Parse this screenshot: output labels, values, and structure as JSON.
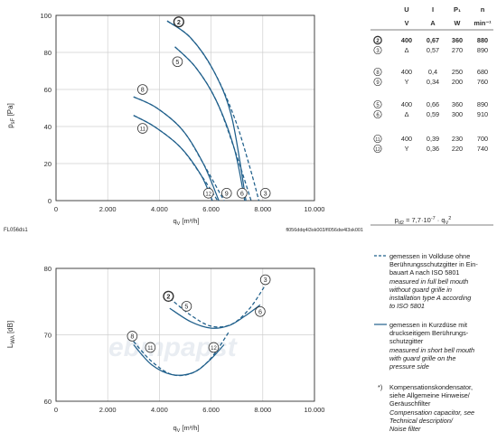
{
  "colors": {
    "curve": "#1f5f8b",
    "grid": "#cfcfcf",
    "axis": "#333333",
    "watermark": "#e9edf2"
  },
  "watermark_text": "ebmpapst",
  "chart_data": [
    {
      "type": "line",
      "id": "pressure",
      "ylabel": "p_sF [Pa]",
      "xlabel": "q_V [m³/h]",
      "xlim": [
        0,
        10000
      ],
      "ylim": [
        0,
        100
      ],
      "x_ticks": [
        "0",
        "2.000",
        "4.000",
        "6.000",
        "8.000",
        "10.000"
      ],
      "y_ticks": [
        "0",
        "20",
        "40",
        "60",
        "80",
        "100"
      ],
      "grid": true,
      "footer_left": "FL056ds1",
      "footer_right": "fl056ddq4l3sk003/fl056dw4l3sk001",
      "series": [
        {
          "name": "2",
          "dash": true,
          "x": [
            4300,
            5200,
            6100,
            6900,
            7500,
            7850
          ],
          "y": [
            97,
            88,
            70,
            45,
            18,
            0
          ]
        },
        {
          "name": "5",
          "dash": false,
          "x": [
            4600,
            5400,
            6200,
            6900,
            7300
          ],
          "y": [
            83,
            72,
            54,
            28,
            0
          ]
        },
        {
          "name": "3",
          "dash": true,
          "x": [
            4600,
            5400,
            6200,
            6900,
            7550
          ],
          "y": [
            83,
            72,
            54,
            28,
            0
          ]
        },
        {
          "name": "6",
          "dash": false,
          "x": [
            4300,
            5200,
            6100,
            6800,
            7350
          ],
          "y": [
            97,
            88,
            70,
            45,
            0
          ]
        },
        {
          "name": "8",
          "dash": true,
          "x": [
            3000,
            3900,
            4900,
            5700,
            6500
          ],
          "y": [
            56,
            50,
            38,
            20,
            0
          ]
        },
        {
          "name": "9",
          "dash": false,
          "x": [
            3000,
            3900,
            4900,
            5700,
            6300
          ],
          "y": [
            56,
            50,
            38,
            20,
            0
          ]
        },
        {
          "name": "11",
          "dash": false,
          "x": [
            3000,
            3800,
            4800,
            5600,
            6050
          ],
          "y": [
            46,
            40,
            29,
            14,
            0
          ]
        },
        {
          "name": "12",
          "dash": true,
          "x": [
            3000,
            3800,
            4800,
            5600,
            6250
          ],
          "y": [
            46,
            40,
            29,
            14,
            0
          ]
        }
      ],
      "markers": [
        {
          "label": "2",
          "x": 4750,
          "y": 96.5,
          "bold": true
        },
        {
          "label": "5",
          "x": 4700,
          "y": 75
        },
        {
          "label": "8",
          "x": 3350,
          "y": 60
        },
        {
          "label": "11",
          "x": 3350,
          "y": 39
        },
        {
          "label": "12",
          "x": 5900,
          "y": 4
        },
        {
          "label": "9",
          "x": 6600,
          "y": 4
        },
        {
          "label": "6",
          "x": 7200,
          "y": 4
        },
        {
          "label": "3",
          "x": 8100,
          "y": 4
        }
      ]
    },
    {
      "type": "line",
      "id": "sound",
      "ylabel": "L_WA [dB]",
      "xlabel": "q_V [m³/h]",
      "xlim": [
        0,
        10000
      ],
      "ylim": [
        60,
        80
      ],
      "x_ticks": [
        "0",
        "2.000",
        "4.000",
        "6.000",
        "8.000",
        "10.000"
      ],
      "y_ticks": [
        "60",
        "70",
        "80"
      ],
      "grid": true,
      "series": [
        {
          "name": "2",
          "dash": true,
          "x": [
            4400,
            5200,
            6000,
            6800,
            7500,
            8100
          ],
          "y": [
            75.5,
            73.0,
            71.3,
            71.6,
            74.0,
            77.5
          ]
        },
        {
          "name": "5",
          "dash": false,
          "x": [
            4400,
            5200,
            6000,
            6700,
            7300,
            7900
          ],
          "y": [
            74.0,
            72.0,
            71.0,
            71.4,
            72.8,
            74.5
          ]
        },
        {
          "name": "8",
          "dash": true,
          "x": [
            3000,
            3700,
            4500,
            5300,
            6000,
            6700
          ],
          "y": [
            69.0,
            66.0,
            64.0,
            64.3,
            66.5,
            70.5
          ]
        },
        {
          "name": "11",
          "dash": false,
          "x": [
            3000,
            3700,
            4500,
            5300,
            5900,
            6500
          ],
          "y": [
            68.5,
            65.5,
            64.0,
            64.3,
            66.0,
            68.5
          ]
        }
      ],
      "markers": [
        {
          "label": "2",
          "x": 4350,
          "y": 75.8,
          "bold": true
        },
        {
          "label": "5",
          "x": 5050,
          "y": 74.3
        },
        {
          "label": "3",
          "x": 8100,
          "y": 78.3
        },
        {
          "label": "6",
          "x": 7900,
          "y": 73.5
        },
        {
          "label": "8",
          "x": 2950,
          "y": 69.8
        },
        {
          "label": "11",
          "x": 3650,
          "y": 68.1
        },
        {
          "label": "12",
          "x": 6100,
          "y": 68.1
        }
      ]
    },
    {
      "type": "table",
      "id": "specs",
      "headers": [
        "U",
        "I",
        "P₁",
        "n"
      ],
      "units": [
        "V",
        "A",
        "W",
        "min⁻¹"
      ],
      "groups": [
        {
          "rows": [
            {
              "marker": "2",
              "conn": "",
              "U": "400",
              "I": "0,67",
              "P": "360",
              "n": "880",
              "bold": true
            },
            {
              "marker": "3",
              "conn": "Δ",
              "U": "",
              "I": "0,57",
              "P": "270",
              "n": "890",
              "bold": false
            }
          ]
        },
        {
          "rows": [
            {
              "marker": "8",
              "conn": "",
              "U": "400",
              "I": "0,4",
              "P": "250",
              "n": "680",
              "bold": false
            },
            {
              "marker": "9",
              "conn": "Y",
              "U": "",
              "I": "0,34",
              "P": "200",
              "n": "760",
              "bold": false
            }
          ]
        },
        {
          "rows": [
            {
              "marker": "5",
              "conn": "",
              "U": "400",
              "I": "0,66",
              "P": "360",
              "n": "890",
              "bold": false
            },
            {
              "marker": "6",
              "conn": "Δ",
              "U": "",
              "I": "0,59",
              "P": "300",
              "n": "910",
              "bold": false
            }
          ]
        },
        {
          "rows": [
            {
              "marker": "11",
              "conn": "",
              "U": "400",
              "I": "0,39",
              "P": "230",
              "n": "700",
              "bold": false
            },
            {
              "marker": "12",
              "conn": "Y",
              "U": "",
              "I": "0,36",
              "P": "220",
              "n": "740",
              "bold": false
            }
          ]
        }
      ],
      "formula": "p_d2 = 7,7·10⁻⁷ · q_V²"
    }
  ],
  "legend": {
    "dashed": {
      "de": [
        "gemessen in Vollduse ohne",
        "Berührungsschutzgitter in Ein-",
        "bauart A nach ISO 5801"
      ],
      "en": [
        "measured in full bell mouth",
        "without guard grille in",
        "installation type A according",
        "to ISO 5801"
      ]
    },
    "solid": {
      "de": [
        "gemessen in Kurzdüse mit",
        "druckseitigem Berührungs-",
        "schutzgitter"
      ],
      "en": [
        "measured in short bell mouth",
        "with guard grille on the",
        "pressure side"
      ]
    },
    "footnote": {
      "mark": "*)",
      "de": [
        "Kompensationskondensator,",
        "siehe Allgemeine Hinweise/",
        "Geräuschfilter"
      ],
      "en": [
        "Compensation capacitor, see",
        "Technical description/",
        "Noise filter"
      ]
    }
  }
}
